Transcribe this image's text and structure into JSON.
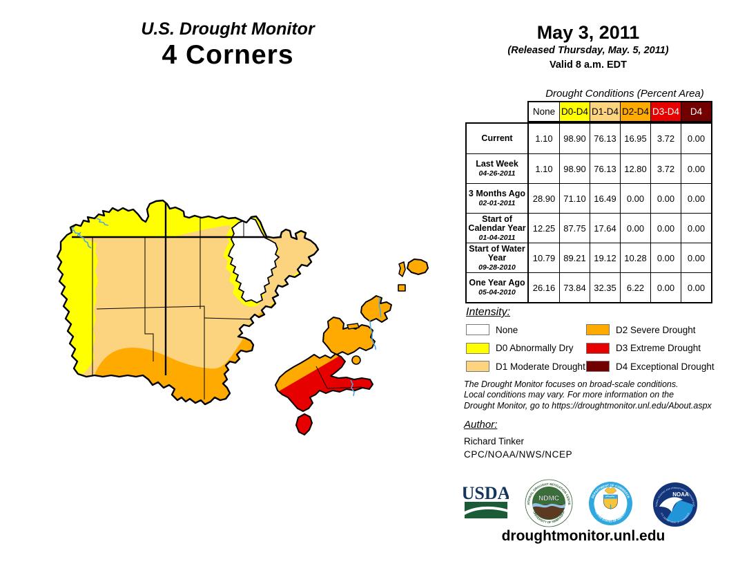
{
  "header": {
    "title_line1": "U.S. Drought Monitor",
    "title_line2": "4 Corners",
    "date": "May 3, 2011",
    "released": "(Released Thursday, May. 5, 2011)",
    "valid": "Valid 8 a.m. EDT"
  },
  "table": {
    "caption": "Drought Conditions (Percent Area)",
    "columns": [
      {
        "label": "None",
        "bg": "#FFFFFF",
        "fg": "#000000"
      },
      {
        "label": "D0-D4",
        "bg": "#FFFF00",
        "fg": "#000000"
      },
      {
        "label": "D1-D4",
        "bg": "#FCD37F",
        "fg": "#000000"
      },
      {
        "label": "D2-D4",
        "bg": "#FFAA00",
        "fg": "#000000"
      },
      {
        "label": "D3-D4",
        "bg": "#E60000",
        "fg": "#FFFFFF"
      },
      {
        "label": "D4",
        "bg": "#730000",
        "fg": "#FFFFFF"
      }
    ],
    "rows": [
      {
        "label": "Current",
        "sublabel": "",
        "values": [
          "1.10",
          "98.90",
          "76.13",
          "16.95",
          "3.72",
          "0.00"
        ]
      },
      {
        "label": "Last Week",
        "sublabel": "04-26-2011",
        "values": [
          "1.10",
          "98.90",
          "76.13",
          "12.80",
          "3.72",
          "0.00"
        ]
      },
      {
        "label": "3 Months Ago",
        "sublabel": "02-01-2011",
        "values": [
          "28.90",
          "71.10",
          "16.49",
          "0.00",
          "0.00",
          "0.00"
        ]
      },
      {
        "label": "Start of Calendar Year",
        "sublabel": "01-04-2011",
        "values": [
          "12.25",
          "87.75",
          "17.64",
          "0.00",
          "0.00",
          "0.00"
        ]
      },
      {
        "label": "Start of Water Year",
        "sublabel": "09-28-2010",
        "values": [
          "10.79",
          "89.21",
          "19.12",
          "10.28",
          "0.00",
          "0.00"
        ]
      },
      {
        "label": "One Year Ago",
        "sublabel": "05-04-2010",
        "values": [
          "26.16",
          "73.84",
          "32.35",
          "6.22",
          "0.00",
          "0.00"
        ]
      }
    ]
  },
  "legend": {
    "heading": "Intensity:",
    "items": [
      {
        "label": "None",
        "color": "#FFFFFF"
      },
      {
        "label": "D0 Abnormally Dry",
        "color": "#FFFF00"
      },
      {
        "label": "D1 Moderate Drought",
        "color": "#FCD37F"
      },
      {
        "label": "D2 Severe Drought",
        "color": "#FFAA00"
      },
      {
        "label": "D3 Extreme Drought",
        "color": "#E60000"
      },
      {
        "label": "D4 Exceptional Drought",
        "color": "#730000"
      }
    ]
  },
  "disclaimer": {
    "lines": [
      "The Drought Monitor focuses on broad-scale conditions.",
      "Local conditions may vary. For more information on the",
      "Drought Monitor, go to https://droughtmonitor.unl.edu/About.aspx"
    ]
  },
  "author": {
    "heading": "Author:",
    "name": "Richard Tinker",
    "org": "CPC/NOAA/NWS/NCEP"
  },
  "logos": {
    "usda_text": "USDA",
    "ndmc_text": "NDMC",
    "ndmc_ring_top": "NATIONAL DROUGHT MITIGATION CENTER",
    "ndmc_ring_bottom": "UNIVERSITY OF NEBRASKA",
    "doc_ring_top": "DEPARTMENT OF COMMERCE",
    "doc_ring_bottom": "UNITED STATES OF AMERICA",
    "noaa_text": "NOAA",
    "noaa_ring_top": "NATIONAL OCEANIC AND ATMOSPHERIC ADMINISTRATION",
    "noaa_ring_bottom": "U.S. DEPARTMENT OF COMMERCE"
  },
  "footer": {
    "url": "droughtmonitor.unl.edu"
  },
  "map": {
    "region_colors": {
      "none": "#FFFFFF",
      "d0_abnormally_dry": "#FFFF00",
      "d1_moderate_drought": "#FCD37F",
      "d2_severe_drought": "#FFAA00",
      "d3_extreme_drought": "#E60000",
      "d4_exceptional_drought": "#730000",
      "water": "#4FA5E0",
      "boundary": "#000000"
    }
  }
}
